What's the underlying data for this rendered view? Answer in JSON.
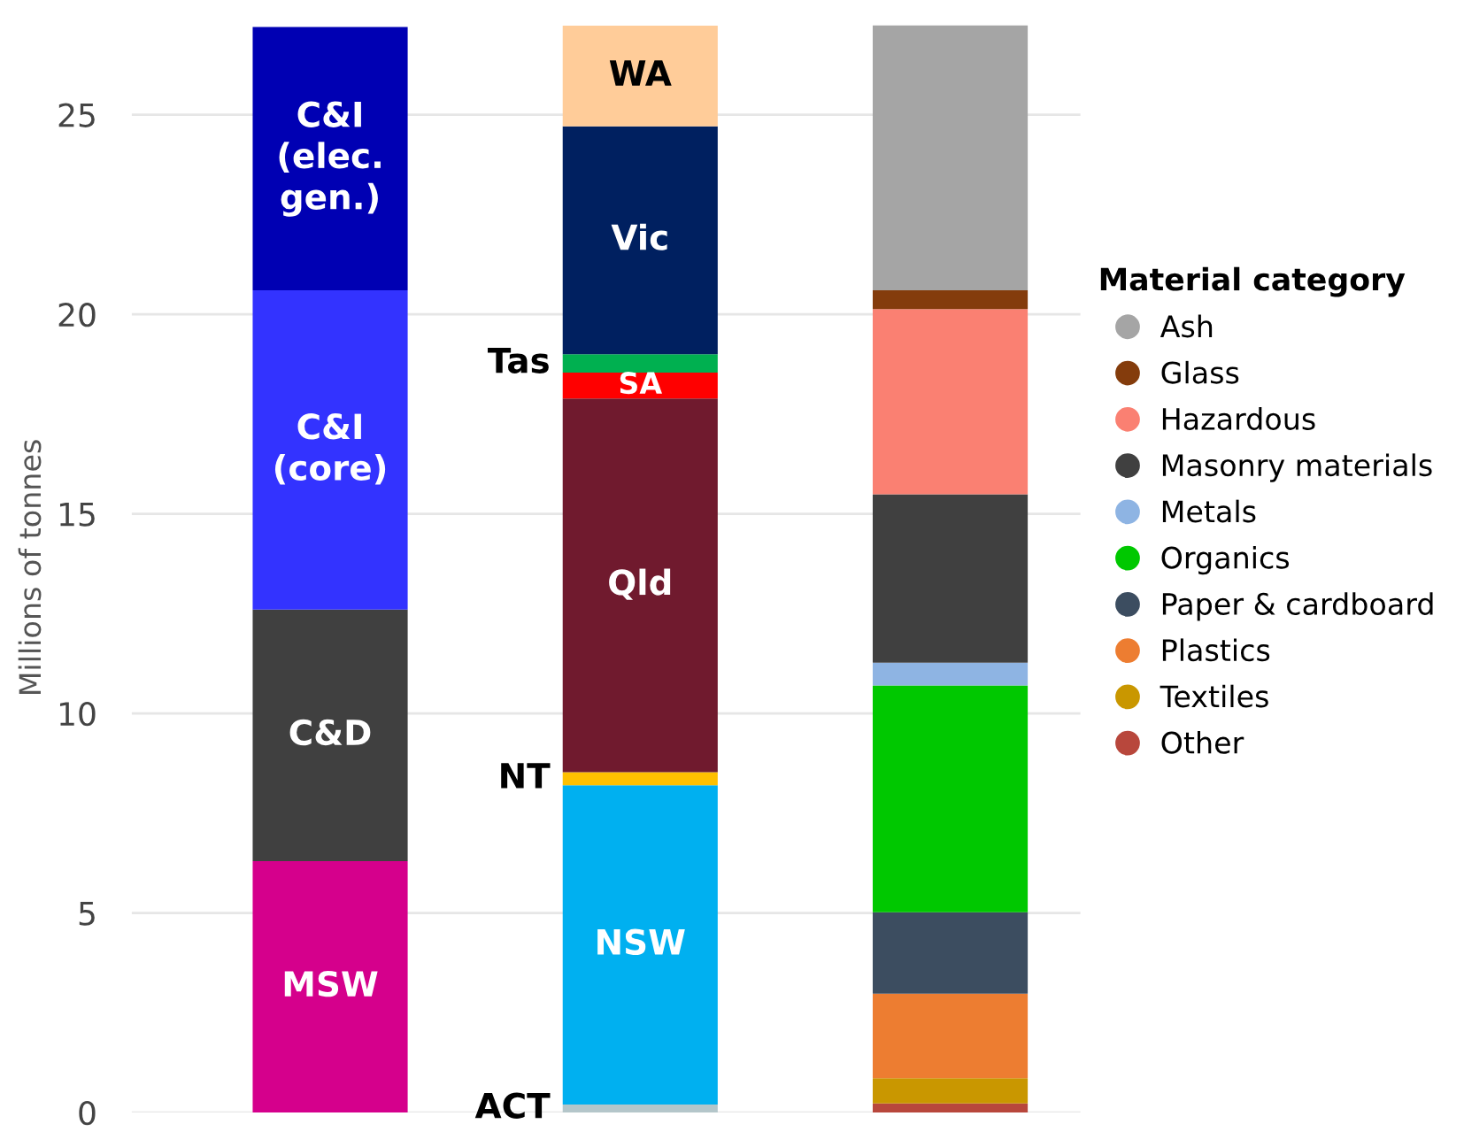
{
  "chart_data": {
    "type": "bar",
    "stacked": true,
    "ylabel": "Millions of tonnes",
    "categories": [
      null,
      null,
      null
    ],
    "ylim": [
      0,
      27.3
    ],
    "yticks": [
      0,
      5,
      10,
      15,
      20,
      25
    ],
    "grid": "y",
    "legend": "right",
    "legend_title": "Material category",
    "series": [
      {
        "name": "MSW",
        "color": "#d5008c",
        "values": [
          6.3,
          null,
          null
        ]
      },
      {
        "name": "C&D",
        "color": "#404040",
        "values": [
          6.3,
          null,
          null
        ]
      },
      {
        "name": "C&I\n(core)",
        "color": "#3333ff",
        "values": [
          8.0,
          null,
          null
        ]
      },
      {
        "name": "C&I\n(elec.\ngen.)",
        "color": "#0000b3",
        "values": [
          6.6,
          null,
          null
        ]
      },
      {
        "name": "ACT",
        "color": "#b4c6ca",
        "values": [
          null,
          0.2,
          null
        ]
      },
      {
        "name": "NSW",
        "color": "#00b0f0",
        "values": [
          null,
          8.0,
          null
        ]
      },
      {
        "name": "NT",
        "color": "#ffc000",
        "values": [
          null,
          0.33,
          null
        ]
      },
      {
        "name": "Qld",
        "color": "#701a2e",
        "values": [
          null,
          9.36,
          null
        ]
      },
      {
        "name": "SA",
        "color": "#ff0000",
        "values": [
          null,
          0.65,
          null
        ]
      },
      {
        "name": "Tas",
        "color": "#00b050",
        "values": [
          null,
          0.46,
          null
        ]
      },
      {
        "name": "Vic",
        "color": "#002060",
        "values": [
          null,
          5.71,
          null
        ]
      },
      {
        "name": "WA",
        "color": "#ffcc99",
        "values": [
          null,
          2.52,
          null
        ]
      },
      {
        "name": "Other",
        "color": "#b8473c",
        "values": [
          null,
          null,
          0.23
        ]
      },
      {
        "name": "Textiles",
        "color": "#c99700",
        "values": [
          null,
          null,
          0.63
        ]
      },
      {
        "name": "Plastics",
        "color": "#ed7d31",
        "values": [
          null,
          null,
          2.12
        ]
      },
      {
        "name": "Paper & cardboard",
        "color": "#3c4d60",
        "values": [
          null,
          null,
          2.04
        ]
      },
      {
        "name": "Organics",
        "color": "#00c800",
        "values": [
          null,
          null,
          5.68
        ]
      },
      {
        "name": "Metals",
        "color": "#8eb4e3",
        "values": [
          null,
          null,
          0.57
        ]
      },
      {
        "name": "Masonry materials",
        "color": "#404040",
        "values": [
          null,
          null,
          4.22
        ]
      },
      {
        "name": "Hazardous",
        "color": "#fa8072",
        "values": [
          null,
          null,
          4.64
        ]
      },
      {
        "name": "Glass",
        "color": "#843c0c",
        "values": [
          null,
          null,
          0.47
        ]
      },
      {
        "name": "Ash",
        "color": "#a5a5a5",
        "values": [
          null,
          null,
          6.64
        ]
      }
    ]
  }
}
